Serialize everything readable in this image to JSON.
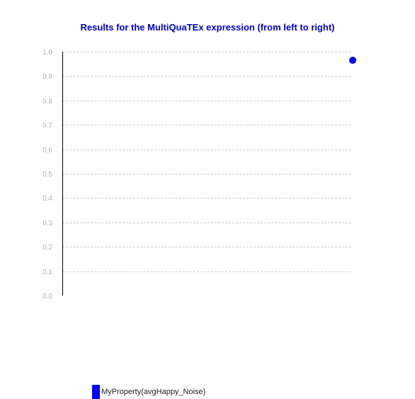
{
  "chart_data": {
    "type": "scatter",
    "title": "Results for the MultiQuaTEx expression (from left to right)",
    "xlabel": "",
    "ylabel": "",
    "ylim": [
      0.0,
      1.0
    ],
    "yticks": [
      "0.0",
      "0.1",
      "0.2",
      "0.3",
      "0.4",
      "0.5",
      "0.6",
      "0.7",
      "0.8",
      "0.9",
      "1.0"
    ],
    "grid": true,
    "legend": "bottom-left",
    "series": [
      {
        "name": "MyProperty(avgHappy_Noise)",
        "color": "#0000ff",
        "points": [
          {
            "x": 1,
            "y": 0.965
          }
        ]
      }
    ]
  },
  "colors": {
    "title": "#0000cc",
    "series": "#0000ff",
    "grid": "#cccccc",
    "tick_label": "#b0b0b0",
    "axis": "#000000"
  }
}
